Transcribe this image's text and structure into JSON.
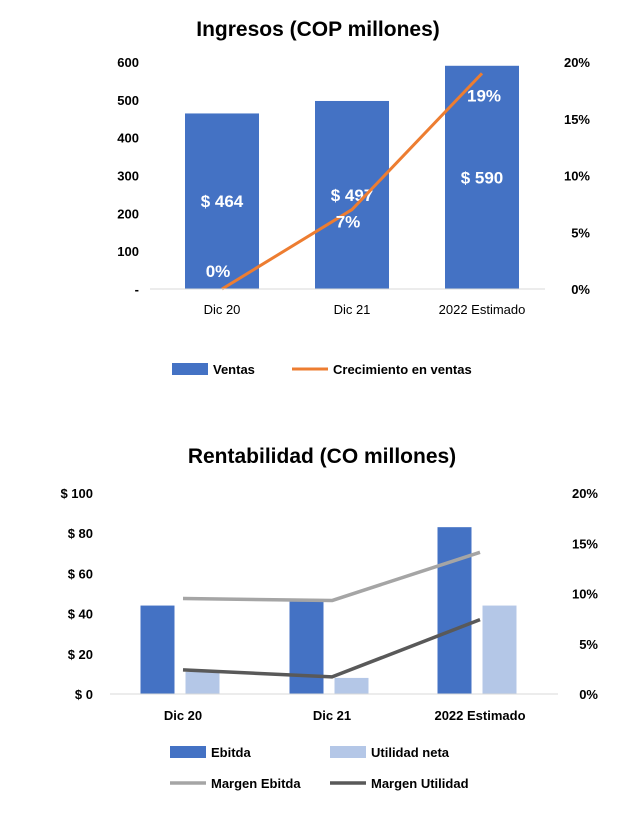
{
  "chart_data": [
    {
      "type": "bar",
      "title": "Ingresos (COP millones)",
      "categories": [
        "Dic 20",
        "Dic 21",
        "2022 Estimado"
      ],
      "y_ticks": [
        "600",
        "500",
        "400",
        "300",
        "200",
        "100",
        "-"
      ],
      "y2_ticks": [
        "20%",
        "15%",
        "10%",
        "5%",
        "0%"
      ],
      "ylim": [
        0,
        600
      ],
      "y2lim": [
        0,
        20
      ],
      "series": [
        {
          "name": "Ventas",
          "type": "bar",
          "axis": "left",
          "color": "#4472C4",
          "values": [
            464,
            497,
            590
          ],
          "labels": [
            "$ 464",
            "$ 497",
            "$ 590"
          ]
        },
        {
          "name": "Crecimiento en ventas",
          "type": "line",
          "axis": "right",
          "color": "#ED7D31",
          "values": [
            0,
            7,
            19
          ],
          "labels": [
            "0%",
            "7%",
            "19%"
          ]
        }
      ],
      "legend_position": "bottom",
      "grid": false
    },
    {
      "type": "bar",
      "title": "Rentabilidad (CO millones)",
      "categories": [
        "Dic 20",
        "Dic 21",
        "2022 Estimado"
      ],
      "y_ticks": [
        "$ 100",
        "$ 80",
        "$ 60",
        "$ 40",
        "$ 20",
        "$ 0"
      ],
      "y2_ticks": [
        "20%",
        "15%",
        "10%",
        "5%",
        "0%"
      ],
      "ylim": [
        0,
        100
      ],
      "y2lim": [
        0,
        20
      ],
      "series": [
        {
          "name": "Ebitda",
          "type": "bar",
          "axis": "left",
          "color": "#4472C4",
          "values": [
            44,
            46,
            83
          ]
        },
        {
          "name": "Utilidad neta",
          "type": "bar",
          "axis": "left",
          "color": "#B4C7E7",
          "values": [
            11,
            8,
            44
          ]
        },
        {
          "name": "Margen Ebitda",
          "type": "line",
          "axis": "right",
          "color": "#A5A5A5",
          "values": [
            9.5,
            9.3,
            14.1
          ]
        },
        {
          "name": "Margen Utilidad",
          "type": "line",
          "axis": "right",
          "color": "#595959",
          "values": [
            2.4,
            1.7,
            7.4
          ]
        }
      ],
      "legend_position": "bottom",
      "grid": false
    }
  ]
}
